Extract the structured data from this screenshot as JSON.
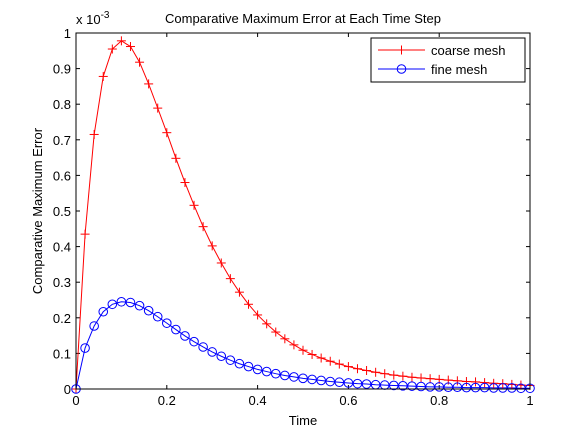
{
  "chart_data": {
    "type": "line",
    "title": "Comparative Maximum Error at Each Time Step",
    "xlabel": "Time",
    "ylabel": "Comparative Maximum Error",
    "y_multiplier": "x 10",
    "y_exponent": "-3",
    "xlim": [
      0,
      1
    ],
    "ylim": [
      0,
      1
    ],
    "x_ticks": [
      0,
      0.2,
      0.4,
      0.6,
      0.8,
      1
    ],
    "x_tick_labels": [
      "0",
      "0.2",
      "0.4",
      "0.6",
      "0.8",
      "1"
    ],
    "y_ticks": [
      0,
      0.1,
      0.2,
      0.3,
      0.4,
      0.5,
      0.6,
      0.7,
      0.8,
      0.9,
      1
    ],
    "y_tick_labels": [
      "0",
      "0.1",
      "0.2",
      "0.3",
      "0.4",
      "0.5",
      "0.6",
      "0.7",
      "0.8",
      "0.9",
      "1"
    ],
    "grid": false,
    "legend_position": "top-right",
    "x": [
      0,
      0.02,
      0.04,
      0.06,
      0.08,
      0.1,
      0.12,
      0.14,
      0.16,
      0.18,
      0.2,
      0.22,
      0.24,
      0.26,
      0.28,
      0.3,
      0.32,
      0.34,
      0.36,
      0.38,
      0.4,
      0.42,
      0.44,
      0.46,
      0.48,
      0.5,
      0.52,
      0.54,
      0.56,
      0.58,
      0.6,
      0.62,
      0.64,
      0.66,
      0.68,
      0.7,
      0.72,
      0.74,
      0.76,
      0.78,
      0.8,
      0.82,
      0.84,
      0.86,
      0.88,
      0.9,
      0.92,
      0.94,
      0.96,
      0.98,
      1
    ],
    "series": [
      {
        "name": "coarse mesh",
        "color": "#ff0000",
        "marker": "plus",
        "values": [
          0,
          0.435,
          0.715,
          0.878,
          0.955,
          0.978,
          0.962,
          0.918,
          0.857,
          0.789,
          0.72,
          0.648,
          0.58,
          0.516,
          0.456,
          0.402,
          0.354,
          0.31,
          0.272,
          0.238,
          0.208,
          0.183,
          0.16,
          0.141,
          0.124,
          0.109,
          0.097,
          0.087,
          0.078,
          0.07,
          0.063,
          0.057,
          0.052,
          0.047,
          0.043,
          0.039,
          0.036,
          0.033,
          0.031,
          0.029,
          0.027,
          0.025,
          0.023,
          0.021,
          0.02,
          0.018,
          0.016,
          0.015,
          0.013,
          0.011,
          0.01
        ]
      },
      {
        "name": "fine mesh",
        "color": "#0000ff",
        "marker": "circle",
        "values": [
          0,
          0.115,
          0.177,
          0.217,
          0.238,
          0.245,
          0.243,
          0.234,
          0.22,
          0.203,
          0.185,
          0.167,
          0.149,
          0.133,
          0.118,
          0.104,
          0.092,
          0.081,
          0.071,
          0.063,
          0.055,
          0.049,
          0.043,
          0.038,
          0.034,
          0.03,
          0.027,
          0.024,
          0.021,
          0.019,
          0.017,
          0.015,
          0.014,
          0.012,
          0.011,
          0.01,
          0.009,
          0.008,
          0.007,
          0.006,
          0.006,
          0.005,
          0.005,
          0.004,
          0.004,
          0.004,
          0.003,
          0.003,
          0.003,
          0.002,
          0.002
        ]
      }
    ]
  }
}
